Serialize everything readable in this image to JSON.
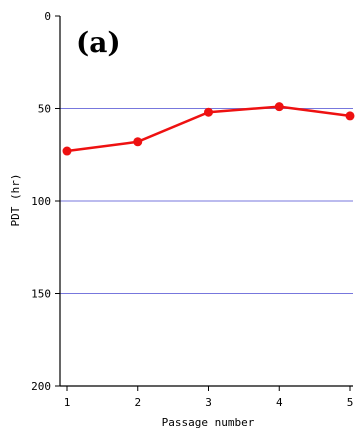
{
  "chart_data": {
    "type": "line",
    "panel_label": "(a)",
    "xlabel": "Passage number",
    "ylabel": "PDT (hr)",
    "x": [
      1,
      2,
      3,
      4,
      5
    ],
    "x_ticks": [
      "1",
      "2",
      "3",
      "4",
      "5"
    ],
    "y_ticks": [
      "0",
      "50",
      "100",
      "150",
      "200"
    ],
    "ylim": [
      0,
      200
    ],
    "y_inverted": true,
    "gridlines_y": [
      50,
      100,
      150
    ],
    "series": [
      {
        "values": [
          73,
          68,
          52,
          49,
          54
        ],
        "color": "#ee1111"
      }
    ],
    "grid_color": "#7777dd"
  }
}
